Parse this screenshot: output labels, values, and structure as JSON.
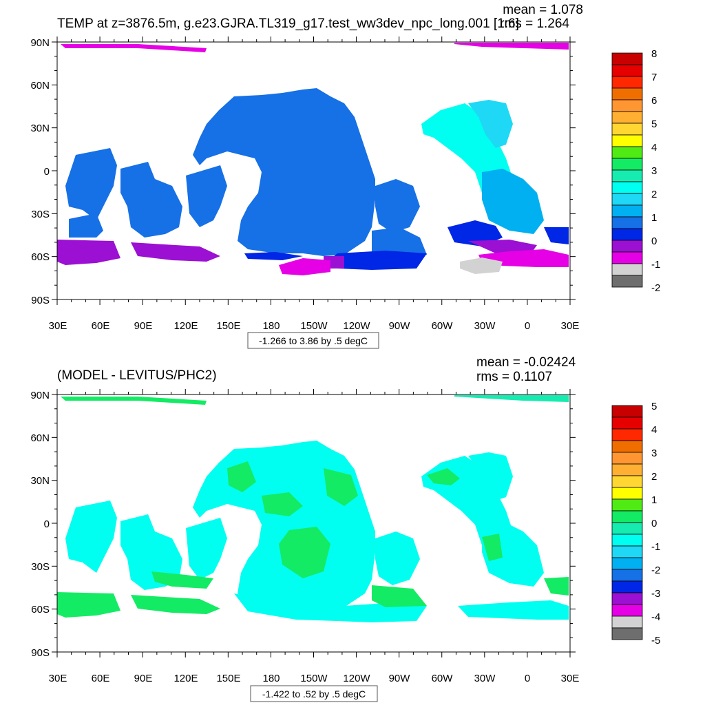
{
  "panels": [
    {
      "title": "TEMP at z=3876.5m, g.e23.GJRA.TL319_g17.test_ww3dev_npc_long.001 [1:6]",
      "mean_text": "mean = 1.078",
      "rms_text": "rms = 1.264",
      "info_text": "-1.266 to 3.86 by .5 degC",
      "colorbar": {
        "colors": [
          "#6e6e6e",
          "#d2d2d2",
          "#e600e6",
          "#9b10d2",
          "#0026e6",
          "#1670e6",
          "#00b0f0",
          "#1ed8f5",
          "#00fff0",
          "#16ebb0",
          "#14eb64",
          "#50eb14",
          "#ffff00",
          "#ffd632",
          "#ffaf32",
          "#ff9632",
          "#f06e00",
          "#ff2800",
          "#e60000",
          "#c80000"
        ],
        "labels": [
          "8",
          "7",
          "6",
          "5",
          "4",
          "3",
          "2",
          "1",
          "0",
          "-1",
          "-2"
        ]
      }
    },
    {
      "title": "(MODEL - LEVITUS/PHC2)",
      "mean_text": "mean = -0.02424",
      "rms_text": "rms = 0.1107",
      "info_text": "-1.422 to .52 by .5 degC",
      "colorbar": {
        "colors": [
          "#6e6e6e",
          "#d2d2d2",
          "#e600e6",
          "#9b10d2",
          "#0026e6",
          "#1670e6",
          "#00b0f0",
          "#1ed8f5",
          "#00fff0",
          "#16ebb0",
          "#14eb64",
          "#50eb14",
          "#ffff00",
          "#ffd632",
          "#ffaf32",
          "#ff9632",
          "#f06e00",
          "#ff2800",
          "#e60000",
          "#c80000"
        ],
        "labels": [
          "5",
          "4",
          "3",
          "2",
          "1",
          "0",
          "-1",
          "-2",
          "-3",
          "-4",
          "-5"
        ]
      }
    }
  ],
  "axes": {
    "lat_labels": [
      "90N",
      "60N",
      "30N",
      "0",
      "30S",
      "60S",
      "90S"
    ],
    "lon_labels": [
      "30E",
      "60E",
      "90E",
      "120E",
      "150E",
      "180",
      "150W",
      "120W",
      "90W",
      "60W",
      "30W",
      "0",
      "30E"
    ]
  },
  "chart_data": [
    {
      "type": "heatmap",
      "title": "TEMP at z=3876.5m, g.e23.GJRA.TL319_g17.test_ww3dev_npc_long.001 [1:6]",
      "x_ticks": [
        "30E",
        "60E",
        "90E",
        "120E",
        "150E",
        "180",
        "150W",
        "120W",
        "90W",
        "60W",
        "30W",
        "0",
        "30E"
      ],
      "y_ticks": [
        "90N",
        "60N",
        "30N",
        "0",
        "30S",
        "60S",
        "90S"
      ],
      "x_range_deg": [
        30,
        390
      ],
      "y_range_deg": [
        -90,
        90
      ],
      "colorbar_labels": [
        "8",
        "7",
        "6",
        "5",
        "4",
        "3",
        "2",
        "1",
        "0",
        "-1",
        "-2"
      ],
      "mean": 1.078,
      "rms": 1.264,
      "contour_min": -1.266,
      "contour_max": 3.86,
      "contour_interval": 0.5,
      "units": "degC"
    },
    {
      "type": "heatmap",
      "title": "(MODEL - LEVITUS/PHC2)",
      "x_ticks": [
        "30E",
        "60E",
        "90E",
        "120E",
        "150E",
        "180",
        "150W",
        "120W",
        "90W",
        "60W",
        "30W",
        "0",
        "30E"
      ],
      "y_ticks": [
        "90N",
        "60N",
        "30N",
        "0",
        "30S",
        "60S",
        "90S"
      ],
      "x_range_deg": [
        30,
        390
      ],
      "y_range_deg": [
        -90,
        90
      ],
      "colorbar_labels": [
        "5",
        "4",
        "3",
        "2",
        "1",
        "0",
        "-1",
        "-2",
        "-3",
        "-4",
        "-5"
      ],
      "mean": -0.02424,
      "rms": 0.1107,
      "contour_min": -1.422,
      "contour_max": 0.52,
      "contour_interval": 0.5,
      "units": "degC"
    }
  ]
}
